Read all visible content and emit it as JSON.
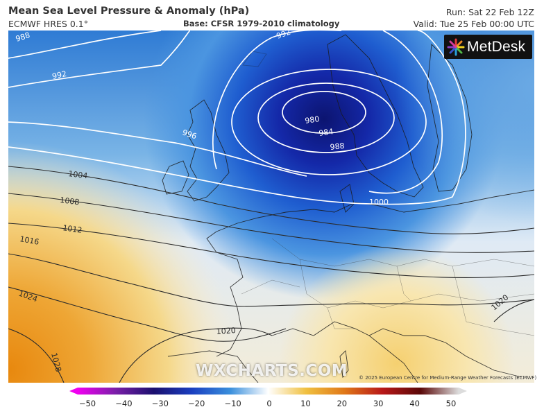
{
  "header": {
    "title": "Mean Sea Level Pressure & Anomaly (hPa)",
    "model": "ECMWF HRES 0.1°",
    "base": "Base: CFSR 1979-2010 climatology",
    "run": "Run: Sat 22 Feb 12Z",
    "valid": "Valid: Tue 25 Feb 00:00 UTC"
  },
  "logo": {
    "text": "MetDesk"
  },
  "watermark": "WXCHARTS.COM",
  "copyright": "© 2025 European Centre for Medium-Range Weather Forecasts (ECMWF)",
  "isobars": {
    "labels": [
      "988",
      "992",
      "996",
      "1004",
      "1008",
      "1012",
      "1016",
      "1024",
      "1028",
      "1020",
      "980",
      "984",
      "988",
      "1000",
      "992",
      "1020"
    ]
  },
  "colorbar": {
    "ticks": [
      "−50",
      "−40",
      "−30",
      "−20",
      "−10",
      "0",
      "10",
      "20",
      "30",
      "40",
      "50"
    ],
    "colors": [
      "#f000f0",
      "#7a1fa8",
      "#1a0f6e",
      "#1a3fc0",
      "#3a8fdc",
      "#ffffff",
      "#f0c040",
      "#e07818",
      "#b81818",
      "#5a0808",
      "#dcdcdc"
    ]
  },
  "colors": {
    "deep_low": "#0e1a8a",
    "ocean_blue": "#2a68cc",
    "high_orange": "#e9a228",
    "neutral": "#eef3f8"
  }
}
